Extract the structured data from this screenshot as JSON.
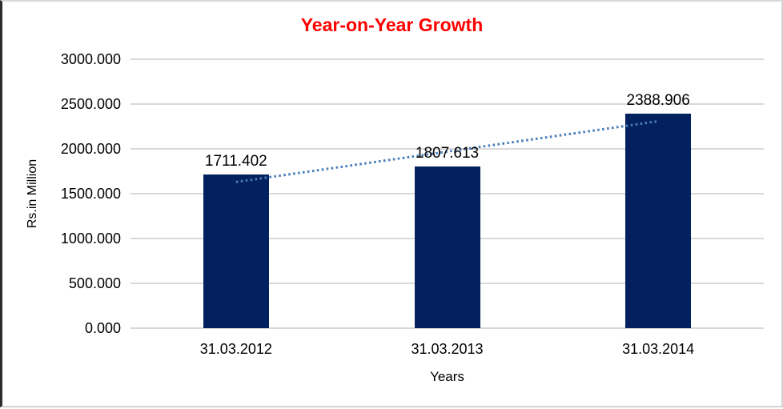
{
  "chart_data": {
    "type": "bar",
    "title": "Year-on-Year Growth",
    "xlabel": "Years",
    "ylabel": "Rs.in Million",
    "categories": [
      "31.03.2012",
      "31.03.2013",
      "31.03.2014"
    ],
    "values": [
      1711.402,
      1807.613,
      2388.906
    ],
    "data_labels": [
      "1711.402",
      "1807.613",
      "2388.906"
    ],
    "ylim": [
      0,
      3000
    ],
    "ytick_step": 500,
    "ytick_labels": [
      "0.000",
      "500.000",
      "1000.000",
      "1500.000",
      "2000.000",
      "2500.000",
      "3000.000"
    ],
    "grid": true,
    "legend": "none",
    "trendline": {
      "type": "linear",
      "style": "dotted"
    },
    "colors": {
      "bar": "#03215e",
      "trendline": "#4a7ebb",
      "gridline": "#d9d9d9",
      "title": "#ff0000",
      "text": "#000000",
      "background": "#ffffff"
    }
  }
}
